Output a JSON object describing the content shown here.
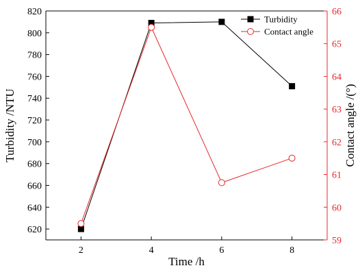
{
  "chart_data": {
    "type": "line",
    "x": [
      2,
      4,
      6,
      8
    ],
    "xlabel": "Time /h",
    "xlim": [
      1,
      9
    ],
    "xticks": [
      2,
      4,
      6,
      8
    ],
    "grid": false,
    "legend_position": "top-right",
    "series": [
      {
        "name": "Turbidity",
        "axis": "left",
        "color": "#000000",
        "marker": "filled-square",
        "values": [
          620,
          809,
          810,
          751
        ]
      },
      {
        "name": "Contact angle",
        "axis": "right",
        "color": "#e8262a",
        "marker": "open-circle",
        "values": [
          59.5,
          65.5,
          60.75,
          61.5
        ]
      }
    ],
    "y_left": {
      "label": "Turbidity /NTU",
      "ylim": [
        610,
        820
      ],
      "ticks": [
        620,
        640,
        660,
        680,
        700,
        720,
        740,
        760,
        780,
        800,
        820
      ],
      "color": "#000000"
    },
    "y_right": {
      "label": "Contact angle /(°)",
      "ylim": [
        59,
        66
      ],
      "ticks": [
        59,
        60,
        61,
        62,
        63,
        64,
        65,
        66
      ],
      "color": "#e8262a"
    }
  }
}
